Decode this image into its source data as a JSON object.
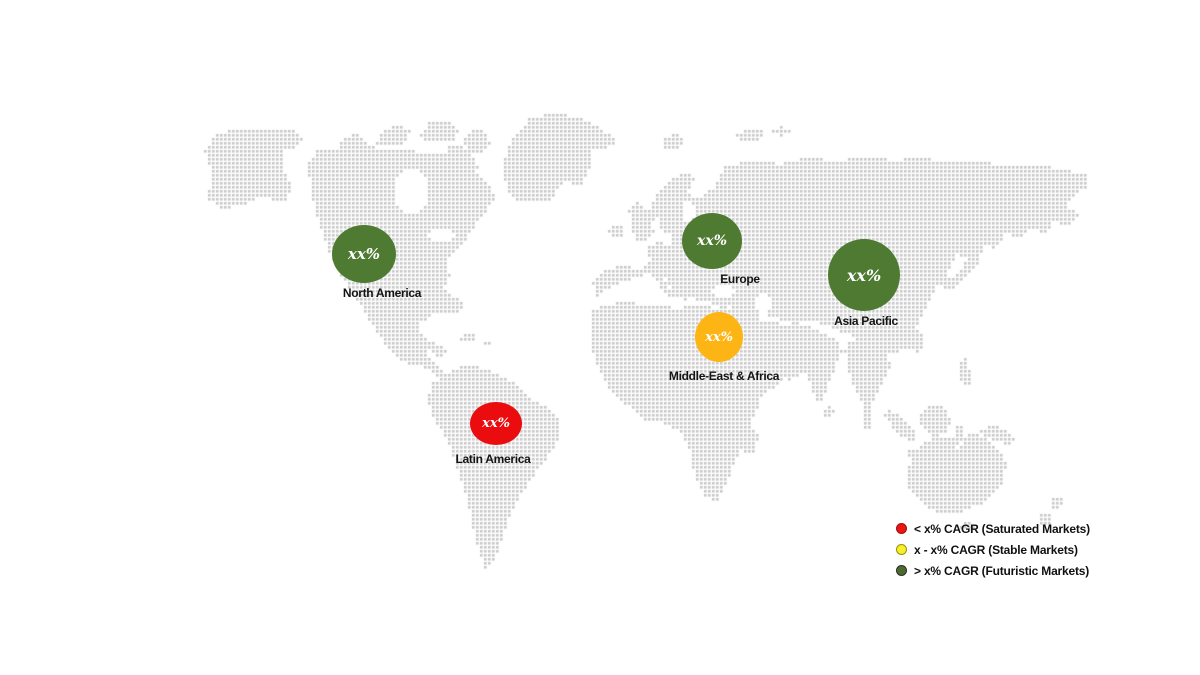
{
  "map": {
    "kind": "dotted-world-map",
    "dot_color": "#c7c7c7",
    "background": "#ffffff"
  },
  "regions": [
    {
      "id": "north-america",
      "label": "North America",
      "value": "xx%",
      "color": "#4e7b31",
      "category": "futuristic"
    },
    {
      "id": "europe",
      "label": "Europe",
      "value": "xx%",
      "color": "#4e7b31",
      "category": "futuristic"
    },
    {
      "id": "asia-pacific",
      "label": "Asia Pacific",
      "value": "xx%",
      "color": "#4e7b31",
      "category": "futuristic"
    },
    {
      "id": "middle-east-africa",
      "label": "Middle-East & Africa",
      "value": "xx%",
      "color": "#fdb515",
      "category": "stable"
    },
    {
      "id": "latin-america",
      "label": "Latin America",
      "value": "xx%",
      "color": "#ea0c0e",
      "category": "saturated"
    }
  ],
  "legend": {
    "items": [
      {
        "label": "< x% CAGR (Saturated Markets)",
        "color": "#ee1414",
        "border": "#9b0f0f"
      },
      {
        "label": "x - x% CAGR (Stable Markets)",
        "color": "#f9ee2a",
        "border": "#98910a"
      },
      {
        "label": "> x% CAGR (Futuristic Markets)",
        "color": "#4e6b2f",
        "border": "#2c2c2c"
      }
    ]
  }
}
